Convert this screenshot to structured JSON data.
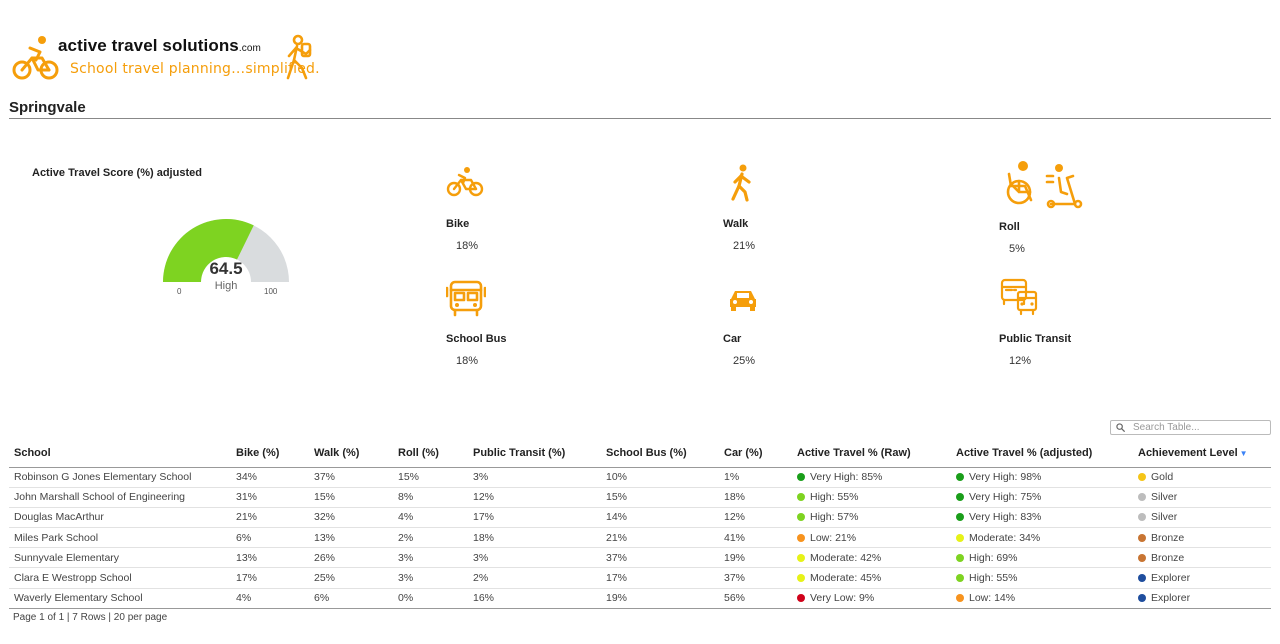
{
  "logo": {
    "name": "active travel solutions",
    "suffix": ".com",
    "tagline": "School travel planning…simplified."
  },
  "page_title": "Springvale",
  "gauge": {
    "label": "Active Travel Score (%) adjusted",
    "value": "64.5",
    "value_num": 64.5,
    "rating": "High",
    "min": "0",
    "max": "100",
    "fill_color": "#7ed321",
    "track_color": "#d9dcde"
  },
  "modes": [
    {
      "label": "Bike",
      "value": "18%",
      "icon": "bike-icon"
    },
    {
      "label": "Walk",
      "value": "21%",
      "icon": "walk-icon"
    },
    {
      "label": "Roll",
      "value": "5%",
      "icon": "wheelchair-scooter-icon"
    },
    {
      "label": "School Bus",
      "value": "18%",
      "icon": "school-bus-icon"
    },
    {
      "label": "Car",
      "value": "25%",
      "icon": "car-icon"
    },
    {
      "label": "Public Transit",
      "value": "12%",
      "icon": "public-transit-icon"
    }
  ],
  "accent_color": "#f59e0b",
  "search": {
    "placeholder": "Search Table..."
  },
  "table": {
    "columns": [
      "School",
      "Bike (%)",
      "Walk (%)",
      "Roll (%)",
      "Public Transit (%)",
      "School Bus (%)",
      "Car (%)",
      "Active Travel % (Raw)",
      "Active Travel % (adjusted)",
      "Achievement Level"
    ],
    "rows": [
      {
        "school": "Robinson G Jones Elementary School",
        "bike": "34%",
        "walk": "37%",
        "roll": "15%",
        "transit": "3%",
        "bus": "10%",
        "car": "1%",
        "raw": "Very High: 85%",
        "raw_color": "#1a9e1a",
        "adj": "Very High: 98%",
        "adj_color": "#1a9e1a",
        "level": "Gold",
        "level_color": "#f5c518"
      },
      {
        "school": "John Marshall School of Engineering",
        "bike": "31%",
        "walk": "15%",
        "roll": "8%",
        "transit": "12%",
        "bus": "15%",
        "car": "18%",
        "raw": "High: 55%",
        "raw_color": "#7ed321",
        "adj": "Very High: 75%",
        "adj_color": "#1a9e1a",
        "level": "Silver",
        "level_color": "#bdbdbd"
      },
      {
        "school": "Douglas MacArthur",
        "bike": "21%",
        "walk": "32%",
        "roll": "4%",
        "transit": "17%",
        "bus": "14%",
        "car": "12%",
        "raw": "High: 57%",
        "raw_color": "#7ed321",
        "adj": "Very High: 83%",
        "adj_color": "#1a9e1a",
        "level": "Silver",
        "level_color": "#bdbdbd"
      },
      {
        "school": "Miles Park School",
        "bike": "6%",
        "walk": "13%",
        "roll": "2%",
        "transit": "18%",
        "bus": "21%",
        "car": "41%",
        "raw": "Low: 21%",
        "raw_color": "#f7931e",
        "adj": "Moderate: 34%",
        "adj_color": "#e6f218",
        "level": "Bronze",
        "level_color": "#c87533"
      },
      {
        "school": "Sunnyvale Elementary",
        "bike": "13%",
        "walk": "26%",
        "roll": "3%",
        "transit": "3%",
        "bus": "37%",
        "car": "19%",
        "raw": "Moderate: 42%",
        "raw_color": "#e6f218",
        "adj": "High: 69%",
        "adj_color": "#7ed321",
        "level": "Bronze",
        "level_color": "#c87533"
      },
      {
        "school": "Clara E Westropp School",
        "bike": "17%",
        "walk": "25%",
        "roll": "3%",
        "transit": "2%",
        "bus": "17%",
        "car": "37%",
        "raw": "Moderate: 45%",
        "raw_color": "#e6f218",
        "adj": "High: 55%",
        "adj_color": "#7ed321",
        "level": "Explorer",
        "level_color": "#1f4e9e"
      },
      {
        "school": "Waverly Elementary School",
        "bike": "4%",
        "walk": "6%",
        "roll": "0%",
        "transit": "16%",
        "bus": "19%",
        "car": "56%",
        "raw": "Very Low: 9%",
        "raw_color": "#d0021b",
        "adj": "Low: 14%",
        "adj_color": "#f7931e",
        "level": "Explorer",
        "level_color": "#1f4e9e"
      }
    ],
    "sort_column": "Achievement Level",
    "sort_direction": "descending"
  },
  "pagination": "Page 1 of 1 | 7 Rows | 20 per page"
}
